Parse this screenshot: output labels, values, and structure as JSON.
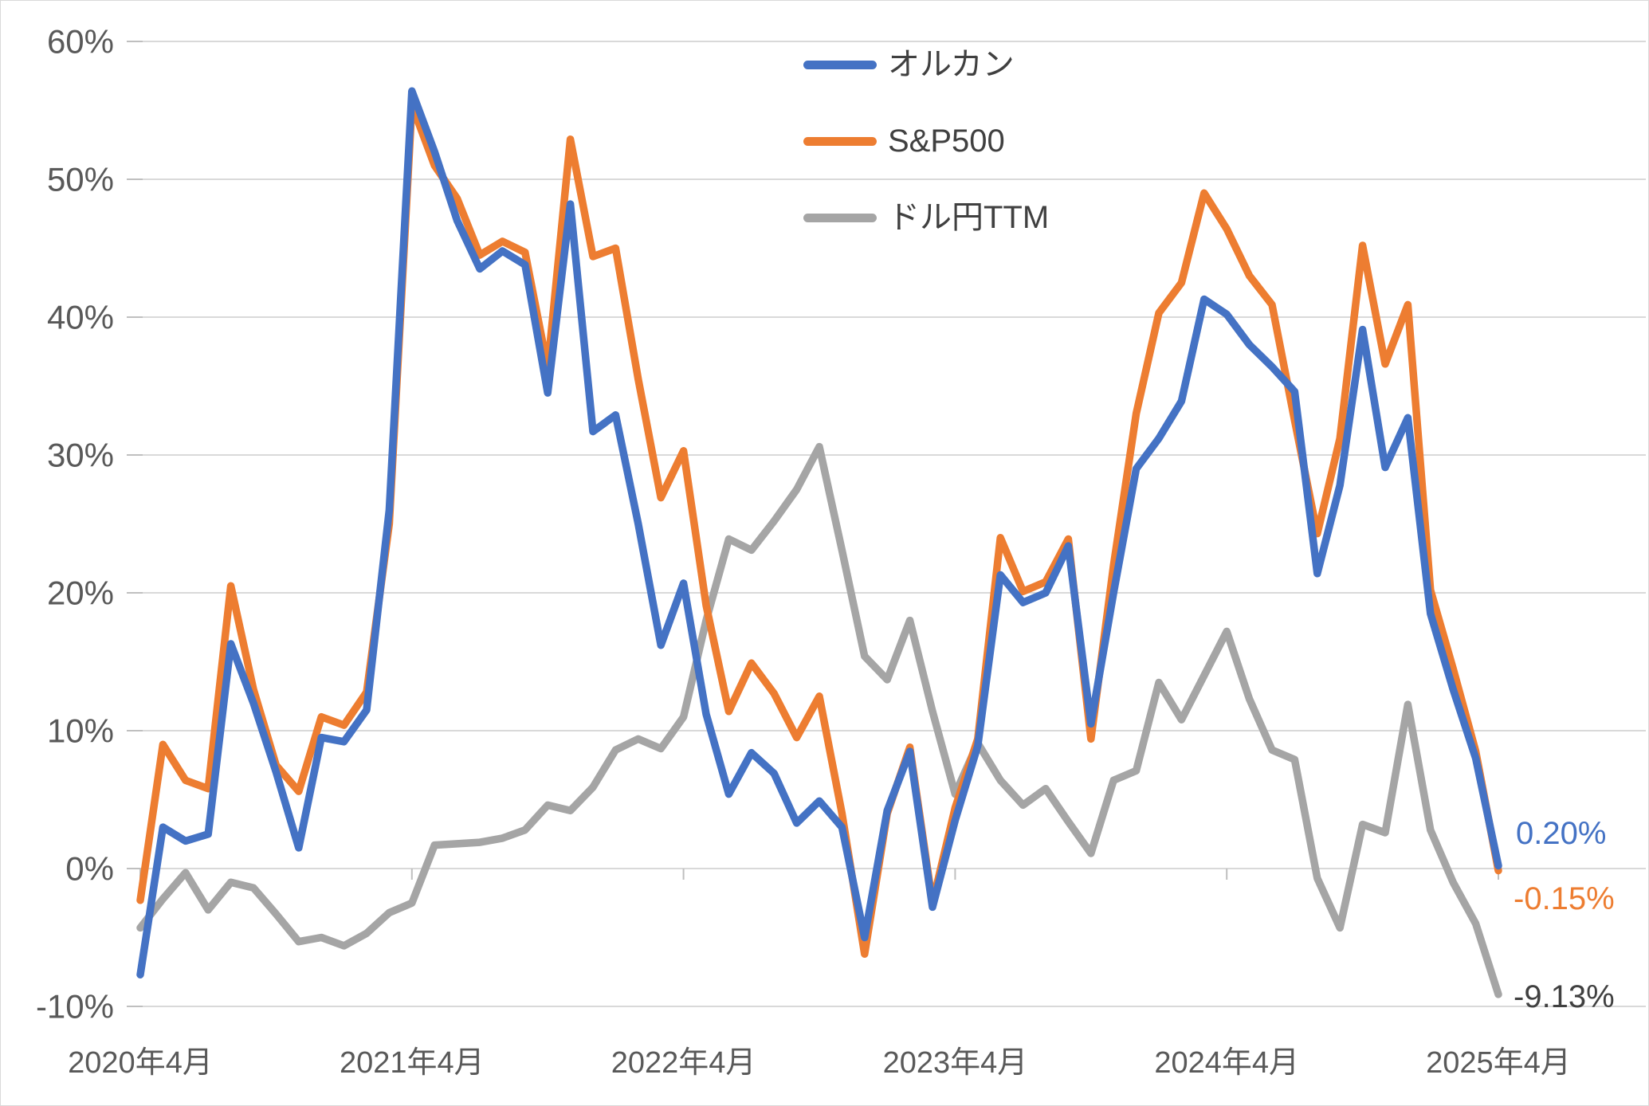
{
  "chart_data": {
    "type": "line",
    "title": "",
    "xlabel": "",
    "ylabel": "",
    "ylim": [
      -10,
      60
    ],
    "y_step": 10,
    "grid": true,
    "legend_position": "top-center, vertical stack",
    "y_tick_labels": [
      "60%",
      "50%",
      "40%",
      "30%",
      "20%",
      "10%",
      "0%",
      "-10%"
    ],
    "x_tick_labels": [
      "2020年4月",
      "2021年4月",
      "2022年4月",
      "2023年4月",
      "2024年4月",
      "2025年4月"
    ],
    "categories": [
      "2020-04",
      "2020-05",
      "2020-06",
      "2020-07",
      "2020-08",
      "2020-09",
      "2020-10",
      "2020-11",
      "2020-12",
      "2021-01",
      "2021-02",
      "2021-03",
      "2021-04",
      "2021-05",
      "2021-06",
      "2021-07",
      "2021-08",
      "2021-09",
      "2021-10",
      "2021-11",
      "2021-12",
      "2022-01",
      "2022-02",
      "2022-03",
      "2022-04",
      "2022-05",
      "2022-06",
      "2022-07",
      "2022-08",
      "2022-09",
      "2022-10",
      "2022-11",
      "2022-12",
      "2023-01",
      "2023-02",
      "2023-03",
      "2023-04",
      "2023-05",
      "2023-06",
      "2023-07",
      "2023-08",
      "2023-09",
      "2023-10",
      "2023-11",
      "2023-12",
      "2024-01",
      "2024-02",
      "2024-03",
      "2024-04",
      "2024-05",
      "2024-06",
      "2024-07",
      "2024-08",
      "2024-09",
      "2024-10",
      "2024-11",
      "2024-12",
      "2025-01",
      "2025-02",
      "2025-03",
      "2025-04"
    ],
    "series": [
      {
        "name": "オルカン",
        "color": "#4472C4",
        "end_label": "0.20%",
        "end_label_color": "#4472C4",
        "values": [
          -7.7,
          3.0,
          2.0,
          2.5,
          16.3,
          12.0,
          7.0,
          1.5,
          9.5,
          9.2,
          11.5,
          26.0,
          56.4,
          52.0,
          47.0,
          43.5,
          44.8,
          43.8,
          34.5,
          48.2,
          31.7,
          32.9,
          25.0,
          16.2,
          20.7,
          11.2,
          5.4,
          8.4,
          6.9,
          3.3,
          4.9,
          3.0,
          -5.0,
          4.2,
          8.5,
          -2.8,
          3.5,
          8.9,
          21.3,
          19.3,
          20.0,
          23.4,
          10.5,
          20.0,
          29.0,
          31.2,
          33.9,
          41.3,
          40.2,
          38.0,
          36.4,
          34.6,
          21.4,
          27.8,
          39.1,
          29.1,
          32.7,
          18.5,
          13.0,
          8.0,
          0.2
        ]
      },
      {
        "name": "S&P500",
        "color": "#ED7D31",
        "end_label": "-0.15%",
        "end_label_color": "#ED7D31",
        "values": [
          -2.3,
          9.0,
          6.4,
          5.8,
          20.5,
          13.0,
          7.5,
          5.6,
          11.0,
          10.4,
          12.8,
          25.0,
          55.4,
          51.0,
          48.6,
          44.5,
          45.5,
          44.7,
          36.3,
          52.9,
          44.4,
          45.0,
          35.5,
          26.9,
          30.3,
          19.1,
          11.4,
          14.9,
          12.7,
          9.5,
          12.5,
          4.0,
          -6.2,
          4.0,
          8.8,
          -2.5,
          4.4,
          9.4,
          24.0,
          20.1,
          20.8,
          23.9,
          9.4,
          22.0,
          33.0,
          40.3,
          42.5,
          49.0,
          46.4,
          43.0,
          40.9,
          32.5,
          24.3,
          31.2,
          45.2,
          36.6,
          40.9,
          20.2,
          14.5,
          8.5,
          -0.15
        ]
      },
      {
        "name": "ドル円TTM",
        "color": "#A5A5A5",
        "end_label": "-9.13%",
        "end_label_color": "#404040",
        "values": [
          -4.3,
          -2.2,
          -0.3,
          -3.0,
          -1.0,
          -1.4,
          -3.3,
          -5.3,
          -5.0,
          -5.6,
          -4.7,
          -3.2,
          -2.5,
          1.7,
          1.8,
          1.9,
          2.2,
          2.8,
          4.6,
          4.2,
          5.9,
          8.6,
          9.4,
          8.7,
          11.0,
          18.0,
          23.9,
          23.1,
          25.2,
          27.5,
          30.6,
          23.1,
          15.4,
          13.7,
          18.0,
          11.4,
          5.4,
          9.1,
          6.4,
          4.6,
          5.8,
          3.4,
          1.1,
          6.4,
          7.1,
          13.5,
          10.8,
          14.0,
          17.2,
          12.3,
          8.6,
          7.9,
          -0.7,
          -4.3,
          3.2,
          2.6,
          11.9,
          2.8,
          -1.0,
          -4.0,
          -9.13
        ]
      }
    ],
    "colors": {
      "gridline": "#d9d9d9",
      "axis_tick": "#bfbfbf",
      "axis_text": "#595959",
      "legend_text": "#404040",
      "background": "#ffffff"
    }
  }
}
